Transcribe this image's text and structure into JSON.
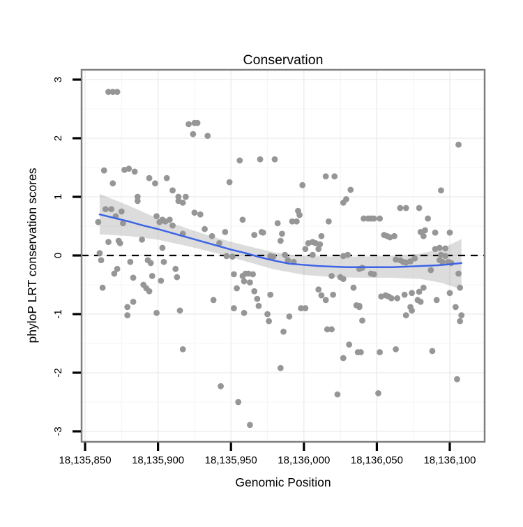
{
  "title": "Conservation",
  "chart_data": {
    "type": "scatter",
    "title": "Conservation",
    "xlabel": "Genomic Position",
    "ylabel": "phyloP LRT conservation scores",
    "xlim": [
      18135847.6,
      18136123.9
    ],
    "ylim": [
      -3.179,
      3.167
    ],
    "grid": "major+minor",
    "legend": "none",
    "x_ticks": {
      "values": [
        18135850,
        18135900,
        18135950,
        18136000,
        18136050,
        18136100
      ],
      "labels": [
        "18,135,850",
        "18,135,900",
        "18,135,950",
        "18,136,000",
        "18,136,050",
        "18,136,100"
      ],
      "minor": [
        18135875,
        18135925,
        18135975,
        18136025,
        18136075
      ]
    },
    "y_ticks": {
      "values": [
        3,
        2,
        1,
        0,
        -1,
        -2,
        -3
      ],
      "labels": [
        "3",
        "2",
        "1",
        "0",
        "-1",
        "-2",
        "-3"
      ],
      "minor": [
        2.5,
        1.5,
        0.5,
        -0.5,
        -1.5,
        -2.5
      ]
    },
    "reference_line": {
      "y": 0,
      "style": "dashed",
      "color": "#000000"
    },
    "colors": {
      "point": "#969696",
      "smooth_line": "#3D64E6",
      "band": "rgba(125,125,125,0.27)",
      "panel_border": "#7f7f7f",
      "grid_major": "#ededed",
      "grid_minor": "#f6f6f6",
      "tick": "#000000",
      "text": "#000000"
    },
    "smooth": {
      "line": [
        [
          18135860,
          0.7
        ],
        [
          18135870,
          0.64
        ],
        [
          18135880,
          0.58
        ],
        [
          18135890,
          0.51
        ],
        [
          18135900,
          0.45
        ],
        [
          18135910,
          0.38
        ],
        [
          18135920,
          0.31
        ],
        [
          18135930,
          0.24
        ],
        [
          18135940,
          0.17
        ],
        [
          18135950,
          0.1
        ],
        [
          18135960,
          0.04
        ],
        [
          18135970,
          -0.03
        ],
        [
          18135980,
          -0.09
        ],
        [
          18135990,
          -0.14
        ],
        [
          18136000,
          -0.16
        ],
        [
          18136010,
          -0.18
        ],
        [
          18136020,
          -0.19
        ],
        [
          18136030,
          -0.2
        ],
        [
          18136040,
          -0.2
        ],
        [
          18136050,
          -0.2
        ],
        [
          18136060,
          -0.2
        ],
        [
          18136070,
          -0.19
        ],
        [
          18136080,
          -0.18
        ],
        [
          18136090,
          -0.17
        ],
        [
          18136100,
          -0.15
        ],
        [
          18136108,
          -0.13
        ]
      ],
      "band": {
        "x": [
          18135860,
          18135880,
          18135900,
          18135920,
          18135940,
          18135960,
          18135980,
          18136000,
          18136020,
          18136040,
          18136060,
          18136080,
          18136095,
          18136108
        ],
        "upper": [
          1.05,
          0.85,
          0.63,
          0.46,
          0.3,
          0.17,
          0.05,
          -0.01,
          -0.02,
          -0.02,
          -0.01,
          0.03,
          0.12,
          0.28
        ],
        "lower": [
          0.36,
          0.33,
          0.27,
          0.16,
          0.04,
          -0.1,
          -0.24,
          -0.33,
          -0.37,
          -0.38,
          -0.38,
          -0.4,
          -0.47,
          -0.58
        ]
      }
    },
    "points": [
      [
        18135866,
        2.79
      ],
      [
        18135869,
        2.79
      ],
      [
        18135872,
        2.79
      ],
      [
        18135921,
        2.24
      ],
      [
        18135925,
        2.26
      ],
      [
        18135927,
        2.26
      ],
      [
        18135924,
        2.07
      ],
      [
        18135934,
        2.04
      ],
      [
        18136106,
        1.89
      ],
      [
        18135956,
        1.62
      ],
      [
        18135970,
        1.64
      ],
      [
        18135980,
        1.64
      ],
      [
        18135863,
        1.45
      ],
      [
        18135877,
        1.46
      ],
      [
        18135880,
        1.48
      ],
      [
        18135884,
        1.43
      ],
      [
        18136015,
        1.35
      ],
      [
        18136021,
        1.35
      ],
      [
        18135894,
        1.32
      ],
      [
        18135906,
        1.32
      ],
      [
        18135949,
        1.25
      ],
      [
        18135898,
        1.23
      ],
      [
        18135869,
        1.23
      ],
      [
        18135999,
        1.2
      ],
      [
        18136032,
        1.12
      ],
      [
        18136094,
        1.11
      ],
      [
        18135910,
        1.11
      ],
      [
        18135914,
        1.0
      ],
      [
        18135919,
        1.0
      ],
      [
        18135886,
        1.0
      ],
      [
        18136027,
        0.9
      ],
      [
        18136029,
        0.96
      ],
      [
        18135886,
        0.93
      ],
      [
        18135914,
        0.93
      ],
      [
        18135917,
        0.9
      ],
      [
        18135864,
        0.79
      ],
      [
        18135868,
        0.79
      ],
      [
        18135875,
        0.75
      ],
      [
        18135871,
        0.67
      ],
      [
        18135859,
        0.57
      ],
      [
        18135876,
        0.55
      ],
      [
        18135899,
        0.67
      ],
      [
        18135901,
        0.57
      ],
      [
        18135903,
        0.61
      ],
      [
        18135905,
        0.58
      ],
      [
        18135908,
        0.61
      ],
      [
        18135910,
        0.51
      ],
      [
        18135925,
        0.73
      ],
      [
        18135929,
        0.7
      ],
      [
        18135932,
        0.45
      ],
      [
        18135917,
        0.37
      ],
      [
        18135937,
        0.33
      ],
      [
        18135866,
        0.23
      ],
      [
        18135873,
        0.25
      ],
      [
        18135874,
        0.21
      ],
      [
        18135889,
        0.27
      ],
      [
        18135903,
        0.13
      ],
      [
        18135860,
        0.04
      ],
      [
        18135861,
        -0.08
      ],
      [
        18135881,
        -0.11
      ],
      [
        18135893,
        -0.08
      ],
      [
        18135895,
        -0.13
      ],
      [
        18135904,
        -0.11
      ],
      [
        18135872,
        -0.23
      ],
      [
        18135870,
        -0.31
      ],
      [
        18135883,
        -0.38
      ],
      [
        18135896,
        -0.35
      ],
      [
        18135902,
        -0.43
      ],
      [
        18135913,
        -0.37
      ],
      [
        18135912,
        -0.23
      ],
      [
        18135862,
        -0.55
      ],
      [
        18135890,
        -0.5
      ],
      [
        18135892,
        -0.56
      ],
      [
        18135894,
        -0.61
      ],
      [
        18135883,
        -0.79
      ],
      [
        18135879,
        -0.88
      ],
      [
        18135899,
        -0.98
      ],
      [
        18135915,
        -0.94
      ],
      [
        18135938,
        -0.76
      ],
      [
        18135879,
        -1.02
      ],
      [
        18135996,
        0.76
      ],
      [
        18135997,
        0.69
      ],
      [
        18135992,
        0.58
      ],
      [
        18135995,
        0.58
      ],
      [
        18135982,
        0.55
      ],
      [
        18136017,
        0.58
      ],
      [
        18135958,
        0.61
      ],
      [
        18135966,
        0.35
      ],
      [
        18135971,
        0.4
      ],
      [
        18135972,
        0.39
      ],
      [
        18135985,
        0.37
      ],
      [
        18135984,
        0.25
      ],
      [
        18136012,
        0.33
      ],
      [
        18136003,
        0.21
      ],
      [
        18136006,
        0.23
      ],
      [
        18136008,
        0.21
      ],
      [
        18136011,
        0.19
      ],
      [
        18136010,
        0.11
      ],
      [
        18136001,
        0.11
      ],
      [
        18135946,
        0.4
      ],
      [
        18135942,
        0.21
      ],
      [
        18135947,
        -0.01
      ],
      [
        18135951,
        -0.02
      ],
      [
        18135977,
        -0.01
      ],
      [
        18135979,
        -0.02
      ],
      [
        18135987,
        0.01
      ],
      [
        18135989,
        -0.08
      ],
      [
        18135993,
        -0.11
      ],
      [
        18136006,
        0.01
      ],
      [
        18136027,
        -0.01
      ],
      [
        18136030,
        0.01
      ],
      [
        18135952,
        -0.32
      ],
      [
        18135958,
        -0.35
      ],
      [
        18135960,
        -0.31
      ],
      [
        18135962,
        -0.31
      ],
      [
        18135965,
        -0.32
      ],
      [
        18135959,
        -0.44
      ],
      [
        18135963,
        -0.46
      ],
      [
        18135954,
        -0.56
      ],
      [
        18135966,
        -0.61
      ],
      [
        18135968,
        -0.74
      ],
      [
        18135969,
        -0.86
      ],
      [
        18135977,
        -0.67
      ],
      [
        18136010,
        -0.58
      ],
      [
        18136012,
        -0.68
      ],
      [
        18136015,
        -0.76
      ],
      [
        18136020,
        -0.67
      ],
      [
        18136019,
        -0.35
      ],
      [
        18136025,
        -0.37
      ],
      [
        18136027,
        -0.4
      ],
      [
        18136034,
        -0.55
      ],
      [
        18136036,
        -0.85
      ],
      [
        18136038,
        -0.88
      ],
      [
        18135998,
        -0.9
      ],
      [
        18136001,
        -0.9
      ],
      [
        18135952,
        -0.9
      ],
      [
        18135959,
        -0.98
      ],
      [
        18135975,
        -1.0
      ],
      [
        18135990,
        -1.04
      ],
      [
        18136066,
        0.81
      ],
      [
        18136070,
        0.81
      ],
      [
        18136079,
        0.81
      ],
      [
        18136041,
        0.63
      ],
      [
        18136044,
        0.63
      ],
      [
        18136046,
        0.63
      ],
      [
        18136048,
        0.63
      ],
      [
        18136052,
        0.63
      ],
      [
        18136085,
        0.63
      ],
      [
        18136055,
        0.35
      ],
      [
        18136057,
        0.33
      ],
      [
        18136059,
        0.31
      ],
      [
        18136062,
        0.33
      ],
      [
        18136080,
        0.4
      ],
      [
        18136082,
        0.33
      ],
      [
        18136083,
        0.43
      ],
      [
        18136090,
        0.39
      ],
      [
        18136100,
        0.39
      ],
      [
        18136090,
        0.11
      ],
      [
        18136093,
        0.13
      ],
      [
        18136097,
        0.12
      ],
      [
        18136094,
        0.01
      ],
      [
        18136097,
        -0.01
      ],
      [
        18136063,
        -0.07
      ],
      [
        18136066,
        -0.08
      ],
      [
        18136068,
        -0.11
      ],
      [
        18136070,
        -0.12
      ],
      [
        18136073,
        -0.1
      ],
      [
        18136076,
        -0.05
      ],
      [
        18136093,
        -0.08
      ],
      [
        18136095,
        -0.11
      ],
      [
        18136099,
        -0.11
      ],
      [
        18136101,
        -0.13
      ],
      [
        18136038,
        -0.23
      ],
      [
        18136040,
        -0.21
      ],
      [
        18136046,
        -0.31
      ],
      [
        18136048,
        -0.32
      ],
      [
        18136087,
        -0.25
      ],
      [
        18136106,
        -0.31
      ],
      [
        18136107,
        -0.55
      ],
      [
        18136082,
        -0.55
      ],
      [
        18136053,
        -0.7
      ],
      [
        18136056,
        -0.68
      ],
      [
        18136058,
        -0.7
      ],
      [
        18136060,
        -0.73
      ],
      [
        18136064,
        -0.73
      ],
      [
        18136069,
        -0.67
      ],
      [
        18136074,
        -0.64
      ],
      [
        18136079,
        -0.62
      ],
      [
        18136078,
        -0.76
      ],
      [
        18136080,
        -0.79
      ],
      [
        18136091,
        -0.76
      ],
      [
        18136100,
        -0.64
      ],
      [
        18136073,
        -0.88
      ],
      [
        18136074,
        -0.94
      ],
      [
        18136104,
        -0.88
      ],
      [
        18136070,
        -1.02
      ],
      [
        18136038,
        -0.86
      ],
      [
        18136040,
        -1.11
      ],
      [
        18136108,
        -1.02
      ],
      [
        18136107,
        -1.12
      ],
      [
        18135917,
        -1.6
      ],
      [
        18135976,
        -1.12
      ],
      [
        18135986,
        -1.3
      ],
      [
        18136016,
        -1.26
      ],
      [
        18136019,
        -1.26
      ],
      [
        18136031,
        -1.52
      ],
      [
        18136037,
        -1.65
      ],
      [
        18136027,
        -1.75
      ],
      [
        18135984,
        -1.92
      ],
      [
        18135943,
        -2.23
      ],
      [
        18135955,
        -2.5
      ],
      [
        18136023,
        -2.37
      ],
      [
        18135963,
        -2.89
      ],
      [
        18136039,
        -1.65
      ],
      [
        18136052,
        -1.65
      ],
      [
        18136063,
        -1.6
      ],
      [
        18136088,
        -1.63
      ],
      [
        18136105,
        -2.11
      ],
      [
        18136051,
        -2.35
      ]
    ]
  }
}
